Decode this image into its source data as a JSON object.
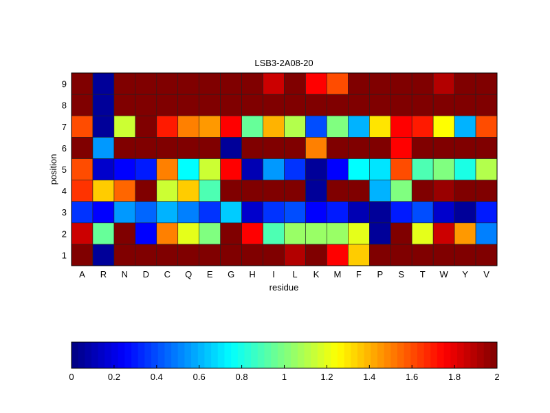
{
  "chart_data": {
    "type": "heatmap",
    "title": "LSB3-2A08-20",
    "xlabel": "residue",
    "ylabel": "position",
    "x": [
      "A",
      "R",
      "N",
      "D",
      "C",
      "Q",
      "E",
      "G",
      "H",
      "I",
      "L",
      "K",
      "M",
      "F",
      "P",
      "S",
      "T",
      "W",
      "Y",
      "V"
    ],
    "y": [
      "1",
      "2",
      "3",
      "4",
      "5",
      "6",
      "7",
      "8",
      "9"
    ],
    "colormap": "jet",
    "clim": [
      0,
      2
    ],
    "colorbar_ticks": [
      "0",
      "0.2",
      "0.4",
      "0.6",
      "0.8",
      "1",
      "1.2",
      "1.4",
      "1.6",
      "1.8",
      "2"
    ],
    "values": [
      [
        2,
        0.05,
        2,
        2,
        2,
        2,
        2,
        2,
        2,
        2,
        1.9,
        2,
        1.75,
        1.35,
        2,
        2,
        2,
        2,
        2,
        2
      ],
      [
        1.85,
        0.95,
        2,
        0.25,
        1.5,
        1.2,
        1.0,
        2,
        1.75,
        0.9,
        1.05,
        1.05,
        1.05,
        1.2,
        0.05,
        2,
        1.2,
        1.85,
        1.45,
        0.5
      ],
      [
        0.35,
        0.25,
        0.55,
        0.45,
        0.6,
        0.5,
        0.35,
        0.65,
        0.15,
        0.35,
        0.4,
        0.25,
        0.3,
        0.1,
        0.05,
        0.3,
        0.4,
        0.15,
        0.05,
        0.3
      ],
      [
        1.65,
        1.35,
        1.55,
        2,
        1.15,
        1.35,
        0.9,
        2,
        2,
        2,
        2,
        0.05,
        2,
        2,
        0.6,
        1.0,
        2,
        1.95,
        2,
        2
      ],
      [
        1.6,
        0.15,
        0.25,
        0.3,
        1.5,
        0.75,
        1.15,
        1.75,
        0.1,
        0.55,
        0.35,
        0.05,
        0.25,
        0.75,
        0.7,
        1.6,
        0.9,
        1.0,
        0.8,
        1.1
      ],
      [
        2,
        0.55,
        2,
        2,
        2,
        2,
        2,
        0.05,
        2,
        2,
        2,
        1.5,
        2,
        2,
        2,
        1.75,
        2,
        2,
        2,
        2
      ],
      [
        1.6,
        0.05,
        1.15,
        2,
        1.7,
        1.5,
        1.45,
        1.75,
        0.95,
        1.4,
        1.1,
        0.4,
        1.0,
        0.6,
        1.3,
        1.75,
        1.7,
        1.25,
        0.6,
        1.6
      ],
      [
        2,
        0.05,
        2,
        2,
        2,
        2,
        2,
        2,
        2,
        2,
        2,
        2,
        2,
        2,
        2,
        2,
        2,
        2,
        2,
        2
      ],
      [
        2,
        0.05,
        2,
        2,
        2,
        2,
        2,
        2,
        2,
        1.85,
        2,
        1.75,
        1.6,
        2,
        2,
        2,
        2,
        1.9,
        2,
        2
      ]
    ]
  }
}
